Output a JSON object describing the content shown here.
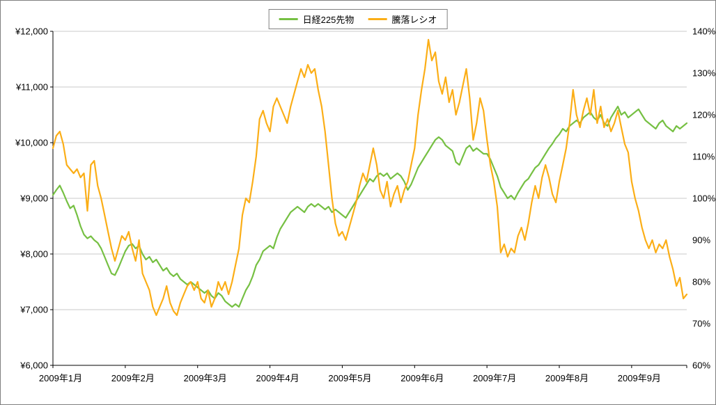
{
  "chart_data": {
    "type": "line",
    "title": "",
    "grid": true,
    "legend_position": "top",
    "x_axis": {
      "labels": [
        "2009年1月",
        "2009年2月",
        "2009年3月",
        "2009年4月",
        "2009年5月",
        "2009年6月",
        "2009年7月",
        "2009年8月",
        "2009年9月"
      ],
      "month_start_indices": [
        0,
        21,
        42,
        63,
        84,
        105,
        126,
        147,
        168
      ]
    },
    "left_axis": {
      "min": 6000,
      "max": 12000,
      "step": 1000,
      "tick_labels": [
        "¥12,000",
        "¥11,000",
        "¥10,000",
        "¥9,000",
        "¥8,000",
        "¥7,000",
        "¥6,000"
      ]
    },
    "right_axis": {
      "min": 60,
      "max": 140,
      "step": 10,
      "tick_labels": [
        "140%",
        "130%",
        "120%",
        "110%",
        "100%",
        "90%",
        "80%",
        "70%",
        "60%"
      ]
    },
    "series": [
      {
        "name": "日経225先物",
        "axis": "left",
        "color": "#76C043",
        "values": [
          9060,
          9150,
          9230,
          9100,
          8950,
          8820,
          8870,
          8700,
          8500,
          8350,
          8280,
          8320,
          8250,
          8200,
          8100,
          7950,
          7800,
          7650,
          7620,
          7750,
          7900,
          8050,
          8150,
          8180,
          8100,
          8150,
          8000,
          7900,
          7950,
          7850,
          7900,
          7800,
          7700,
          7750,
          7650,
          7600,
          7650,
          7550,
          7500,
          7450,
          7500,
          7450,
          7400,
          7350,
          7300,
          7350,
          7250,
          7200,
          7300,
          7250,
          7150,
          7100,
          7050,
          7100,
          7050,
          7200,
          7350,
          7450,
          7600,
          7800,
          7900,
          8050,
          8100,
          8150,
          8100,
          8300,
          8450,
          8550,
          8650,
          8750,
          8800,
          8850,
          8800,
          8750,
          8850,
          8900,
          8850,
          8900,
          8850,
          8800,
          8850,
          8750,
          8800,
          8750,
          8700,
          8650,
          8750,
          8850,
          8950,
          9050,
          9150,
          9250,
          9350,
          9300,
          9400,
          9450,
          9400,
          9450,
          9350,
          9400,
          9450,
          9400,
          9300,
          9150,
          9250,
          9400,
          9550,
          9650,
          9750,
          9850,
          9950,
          10050,
          10100,
          10050,
          9950,
          9900,
          9850,
          9650,
          9600,
          9750,
          9900,
          9950,
          9850,
          9900,
          9850,
          9800,
          9800,
          9700,
          9550,
          9400,
          9200,
          9100,
          9000,
          9050,
          8980,
          9100,
          9200,
          9300,
          9350,
          9450,
          9550,
          9600,
          9700,
          9800,
          9900,
          9980,
          10080,
          10150,
          10250,
          10200,
          10300,
          10350,
          10400,
          10350,
          10450,
          10500,
          10550,
          10450,
          10400,
          10500,
          10350,
          10300,
          10450,
          10550,
          10650,
          10500,
          10550,
          10450,
          10500,
          10550,
          10600,
          10500,
          10400,
          10350,
          10300,
          10250,
          10350,
          10400,
          10300,
          10250,
          10200,
          10300,
          10250,
          10300,
          10350
        ]
      },
      {
        "name": "騰落レシオ",
        "axis": "right",
        "color": "#FBAE17",
        "values": [
          112,
          115,
          116,
          113,
          108,
          107,
          106,
          107,
          105,
          106,
          97,
          108,
          109,
          103,
          100,
          96,
          92,
          88,
          85,
          88,
          91,
          90,
          92,
          88,
          85,
          90,
          82,
          80,
          78,
          74,
          72,
          74,
          76,
          79,
          75,
          73,
          72,
          75,
          77,
          79,
          80,
          78,
          80,
          76,
          75,
          78,
          74,
          76,
          80,
          78,
          80,
          77,
          80,
          84,
          88,
          96,
          100,
          99,
          104,
          110,
          119,
          121,
          118,
          116,
          122,
          124,
          122,
          120,
          118,
          122,
          125,
          128,
          131,
          129,
          132,
          130,
          131,
          126,
          122,
          116,
          108,
          100,
          94,
          91,
          92,
          90,
          93,
          96,
          99,
          103,
          106,
          104,
          108,
          112,
          108,
          102,
          100,
          104,
          98,
          101,
          103,
          99,
          102,
          104,
          108,
          112,
          120,
          126,
          131,
          138,
          133,
          135,
          128,
          125,
          129,
          123,
          126,
          120,
          123,
          127,
          131,
          124,
          114,
          118,
          124,
          121,
          114,
          108,
          104,
          98,
          87,
          89,
          86,
          88,
          87,
          91,
          93,
          90,
          94,
          99,
          103,
          100,
          105,
          108,
          105,
          101,
          99,
          104,
          108,
          112,
          118,
          126,
          120,
          117,
          121,
          124,
          120,
          126,
          118,
          122,
          117,
          119,
          116,
          118,
          121,
          117,
          113,
          111,
          104,
          100,
          97,
          93,
          90,
          88,
          90,
          87,
          89,
          88,
          90,
          86,
          83,
          79,
          81,
          76,
          77
        ]
      }
    ]
  },
  "colors": {
    "grid": "#c9c9c9",
    "axis": "#000000",
    "background": "#ffffff"
  }
}
